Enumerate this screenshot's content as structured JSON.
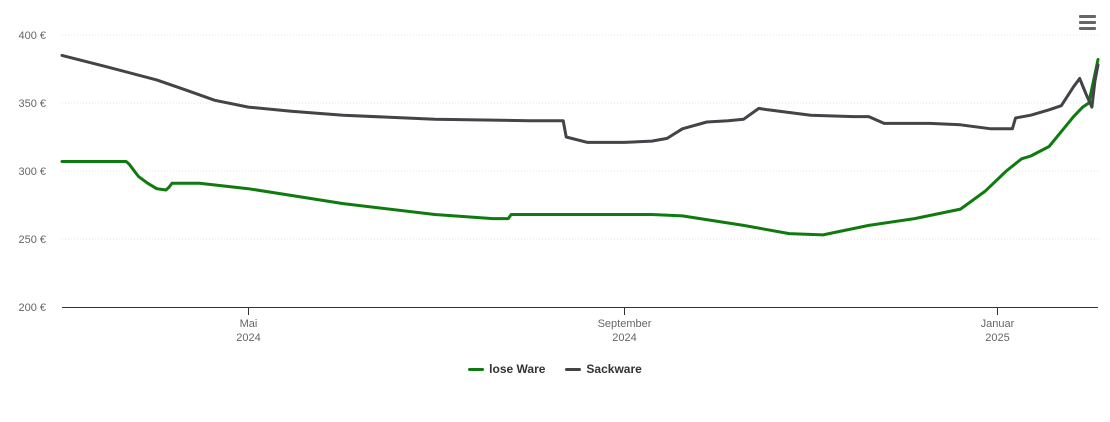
{
  "chart_data": {
    "type": "line",
    "title": "",
    "xlabel": "",
    "ylabel": "",
    "ylim": [
      200,
      400
    ],
    "y_ticks": [
      "200 €",
      "250 €",
      "300 €",
      "350 €",
      "400 €"
    ],
    "y_tick_values": [
      200,
      250,
      300,
      350,
      400
    ],
    "x_ticks": [
      {
        "month": "Mai",
        "year": "2024",
        "date": "2024-05-01"
      },
      {
        "month": "September",
        "year": "2024",
        "date": "2024-09-01"
      },
      {
        "month": "Januar",
        "year": "2025",
        "date": "2025-01-01"
      }
    ],
    "xlim": [
      "2024-03-01",
      "2025-01-31"
    ],
    "grid": true,
    "legend_position": "bottom-center",
    "series": [
      {
        "name": "lose Ware",
        "color": "#0f7b0f",
        "points": [
          [
            "2024-03-01",
            307
          ],
          [
            "2024-03-22",
            307
          ],
          [
            "2024-03-23",
            305
          ],
          [
            "2024-03-26",
            296
          ],
          [
            "2024-03-29",
            291
          ],
          [
            "2024-04-01",
            287
          ],
          [
            "2024-04-04",
            286
          ],
          [
            "2024-04-05",
            288
          ],
          [
            "2024-04-06",
            291
          ],
          [
            "2024-04-15",
            291
          ],
          [
            "2024-05-01",
            287
          ],
          [
            "2024-06-01",
            276
          ],
          [
            "2024-07-01",
            268
          ],
          [
            "2024-07-20",
            265
          ],
          [
            "2024-07-25",
            265
          ],
          [
            "2024-07-26",
            268
          ],
          [
            "2024-08-15",
            268
          ],
          [
            "2024-09-10",
            268
          ],
          [
            "2024-09-20",
            267
          ],
          [
            "2024-10-10",
            260
          ],
          [
            "2024-10-25",
            254
          ],
          [
            "2024-11-05",
            253
          ],
          [
            "2024-11-20",
            260
          ],
          [
            "2024-12-05",
            265
          ],
          [
            "2024-12-20",
            272
          ],
          [
            "2024-12-28",
            285
          ],
          [
            "2025-01-04",
            300
          ],
          [
            "2025-01-09",
            309
          ],
          [
            "2025-01-12",
            311
          ],
          [
            "2025-01-18",
            318
          ],
          [
            "2025-01-22",
            329
          ],
          [
            "2025-01-26",
            340
          ],
          [
            "2025-01-29",
            347
          ],
          [
            "2025-01-31",
            350
          ],
          [
            "2025-02-03",
            382
          ]
        ]
      },
      {
        "name": "Sackware",
        "color": "#434348",
        "points": [
          [
            "2024-03-01",
            385
          ],
          [
            "2024-03-15",
            377
          ],
          [
            "2024-04-01",
            367
          ],
          [
            "2024-04-10",
            360
          ],
          [
            "2024-04-20",
            352
          ],
          [
            "2024-05-01",
            347
          ],
          [
            "2024-05-15",
            344
          ],
          [
            "2024-06-01",
            341
          ],
          [
            "2024-07-01",
            338
          ],
          [
            "2024-08-01",
            337
          ],
          [
            "2024-08-12",
            337
          ],
          [
            "2024-08-13",
            325
          ],
          [
            "2024-08-20",
            321
          ],
          [
            "2024-09-01",
            321
          ],
          [
            "2024-09-10",
            322
          ],
          [
            "2024-09-15",
            324
          ],
          [
            "2024-09-20",
            331
          ],
          [
            "2024-09-28",
            336
          ],
          [
            "2024-10-05",
            337
          ],
          [
            "2024-10-10",
            338
          ],
          [
            "2024-10-15",
            346
          ],
          [
            "2024-10-18",
            345
          ],
          [
            "2024-11-01",
            341
          ],
          [
            "2024-11-15",
            340
          ],
          [
            "2024-11-20",
            340
          ],
          [
            "2024-11-25",
            335
          ],
          [
            "2024-12-10",
            335
          ],
          [
            "2024-12-20",
            334
          ],
          [
            "2024-12-30",
            331
          ],
          [
            "2025-01-06",
            331
          ],
          [
            "2025-01-07",
            339
          ],
          [
            "2025-01-12",
            341
          ],
          [
            "2025-01-18",
            345
          ],
          [
            "2025-01-22",
            348
          ],
          [
            "2025-01-26",
            362
          ],
          [
            "2025-01-28",
            368
          ],
          [
            "2025-01-30",
            357
          ],
          [
            "2025-02-01",
            347
          ],
          [
            "2025-02-02",
            366
          ],
          [
            "2025-02-03",
            378
          ]
        ]
      }
    ]
  },
  "legend": {
    "items": [
      {
        "label": "lose Ware",
        "color": "#0f7b0f"
      },
      {
        "label": "Sackware",
        "color": "#434348"
      }
    ]
  },
  "menu": {
    "icon": "hamburger-menu-icon"
  }
}
